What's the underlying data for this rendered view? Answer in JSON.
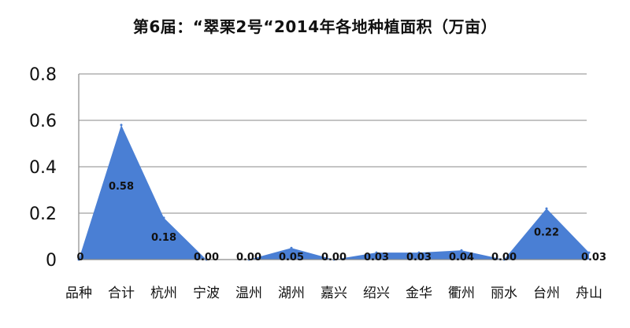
{
  "chart_data": {
    "type": "area",
    "title": "第6届：“翠栗2号“2014年各地种植面积（万亩）",
    "xlabel": "",
    "ylabel": "",
    "categories": [
      "品种",
      "合计",
      "杭州",
      "宁波",
      "温州",
      "湖州",
      "嘉兴",
      "绍兴",
      "金华",
      "衢州",
      "丽水",
      "台州",
      "舟山"
    ],
    "values": [
      0,
      0.58,
      0.18,
      0.0,
      0.0,
      0.05,
      0.0,
      0.03,
      0.03,
      0.04,
      0.0,
      0.22,
      0.03
    ],
    "data_labels": [
      "0",
      "0.58",
      "0.18",
      "0.00",
      "0.00",
      "0.05",
      "0.00",
      "0.03",
      "0.03",
      "0.04",
      "0.00",
      "0.22",
      "0.03"
    ],
    "ylim": [
      0,
      0.8
    ],
    "yticks": [
      "0",
      "0.2",
      "0.4",
      "0.6",
      "0.8"
    ],
    "grid": true,
    "legend": "none",
    "colors": {
      "fill": "#4a7fd4",
      "grid": "#8a8a8a"
    }
  }
}
